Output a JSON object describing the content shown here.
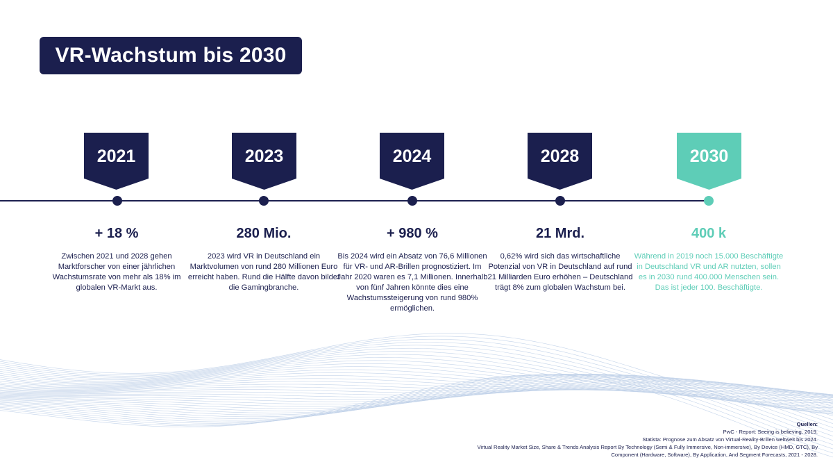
{
  "title": "VR-Wachstum bis 2030",
  "colors": {
    "navy": "#1b1f4e",
    "accent": "#5ecdb7",
    "wave": "#b9cce6"
  },
  "milestones": [
    {
      "year": "2021",
      "value": "+ 18 %",
      "text": "Zwischen 2021 und 2028 gehen Marktforscher von einer jährlichen Wachstumsrate von mehr als 18% im globalen VR-Markt aus."
    },
    {
      "year": "2023",
      "value": "280 Mio.",
      "text": "2023 wird VR in Deutschland ein Marktvolumen von rund 280 Millionen Euro erreicht haben. Rund die Hälfte davon bildet die Gamingbranche."
    },
    {
      "year": "2024",
      "value": "+ 980 %",
      "text": "Bis 2024 wird ein Absatz von 76,6 Millionen für VR- und AR-Brillen prognostiziert. Im Jahr 2020 waren es 7,1 Millionen. Innerhalb von fünf Jahren könnte dies eine Wachstumssteigerung von rund 980% ermöglichen."
    },
    {
      "year": "2028",
      "value": "21 Mrd.",
      "text": "0,62% wird sich das wirtschaftliche Potenzial von VR in Deutschland auf rund 21 Milliarden Euro erhöhen – Deutschland trägt 8% zum globalen Wachstum bei."
    },
    {
      "year": "2030",
      "value": "400 k",
      "text": "Während in 2019 noch 15.000 Beschäftigte in Deutschland VR und AR nutzten, sollen es in 2030 rund 400.000 Menschen sein. Das ist jeder 100. Beschäftigte."
    }
  ],
  "sources": {
    "heading": "Quellen:",
    "lines": [
      "PwC - Report: Seeing is believing, 2019.",
      "Statista: Prognose zum Absatz von Virtual-Reality-Brillen weltweit bis 2024.",
      "Virtual Reality Market Size, Share & Trends Analysis Report By Technology (Semi & Fully Immersive, Non-immersive), By Device (HMD, GTC), By",
      "Component (Hardware, Software), By Application, And Segment Forecasts, 2021 - 2028."
    ]
  }
}
